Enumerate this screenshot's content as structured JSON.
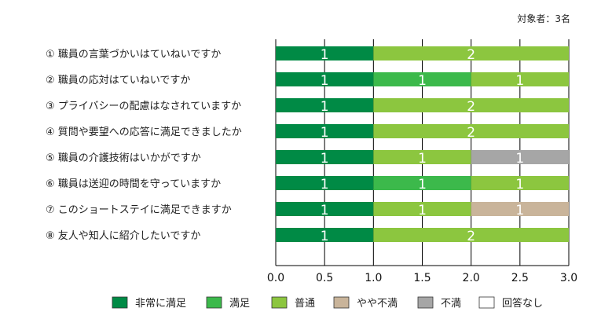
{
  "respondents_note": "対象者：3名",
  "chart_data": {
    "type": "bar",
    "orientation": "horizontal",
    "stacked": true,
    "categories": [
      "① 職員の言葉づかいはていねいですか",
      "② 職員の応対はていねいですか",
      "③ プライバシーの配慮はなされていますか",
      "④ 質問や要望への応答に満足できましたか",
      "⑤ 職員の介護技術はいかがですか",
      "⑥ 職員は送迎の時間を守っていますか",
      "⑦ このショートステイに満足できますか",
      "⑧ 友人や知人に紹介したいですか"
    ],
    "series": [
      {
        "name": "非常に満足",
        "color": "#008a45",
        "values": [
          1,
          1,
          1,
          1,
          1,
          1,
          1,
          1
        ]
      },
      {
        "name": "満足",
        "color": "#3cb94b",
        "values": [
          0,
          1,
          0,
          0,
          0,
          1,
          0,
          0
        ]
      },
      {
        "name": "普通",
        "color": "#8cc63f",
        "values": [
          2,
          1,
          2,
          2,
          1,
          1,
          1,
          2
        ]
      },
      {
        "name": "やや不満",
        "color": "#c9b49a",
        "values": [
          0,
          0,
          0,
          0,
          0,
          0,
          1,
          0
        ]
      },
      {
        "name": "不満",
        "color": "#a6a6a6",
        "values": [
          0,
          0,
          0,
          0,
          1,
          0,
          0,
          0
        ]
      },
      {
        "name": "回答なし",
        "color": "#ffffff",
        "values": [
          0,
          0,
          0,
          0,
          0,
          0,
          0,
          0
        ]
      }
    ],
    "x_ticks": [
      "0.0",
      "0.5",
      "1.0",
      "1.5",
      "2.0",
      "2.5",
      "3.0"
    ],
    "xlim": [
      0,
      3
    ],
    "grid": true,
    "legend_position": "bottom"
  }
}
